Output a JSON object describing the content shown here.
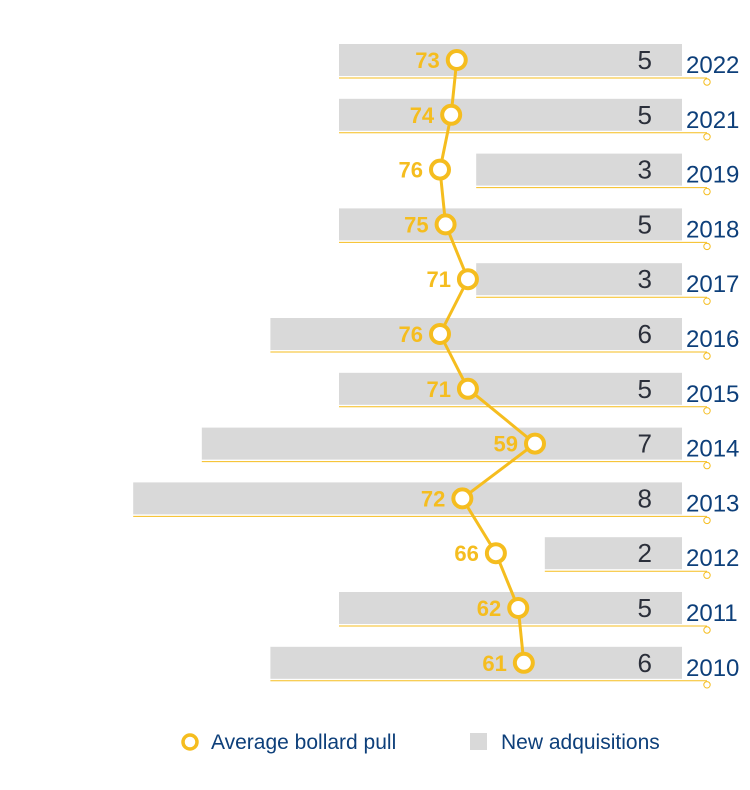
{
  "chart_data": {
    "type": "bar",
    "orientation": "horizontal",
    "categories": [
      "2022",
      "2021",
      "2019",
      "2018",
      "2017",
      "2016",
      "2015",
      "2014",
      "2013",
      "2012",
      "2011",
      "2010"
    ],
    "series": [
      {
        "name": "New adquisitions",
        "type": "bar",
        "values": [
          5,
          5,
          3,
          5,
          3,
          6,
          5,
          7,
          8,
          2,
          5,
          6
        ]
      },
      {
        "name": "Average bollard pull",
        "type": "line",
        "values": [
          73,
          74,
          76,
          75,
          71,
          76,
          71,
          59,
          72,
          66,
          62,
          61
        ]
      }
    ],
    "bar_xlim": [
      0,
      8
    ],
    "line_xlim": [
      59,
      76
    ],
    "colors": {
      "bars": "#d9d9d9",
      "line": "#f5bd1f",
      "year_text": "#0d3f7a",
      "bar_text": "#2b2f3a"
    },
    "legend": {
      "position": "bottom",
      "entries": [
        {
          "name": "Average bollard pull",
          "marker": "circle-outline"
        },
        {
          "name": "New adquisitions",
          "marker": "square"
        }
      ]
    }
  }
}
